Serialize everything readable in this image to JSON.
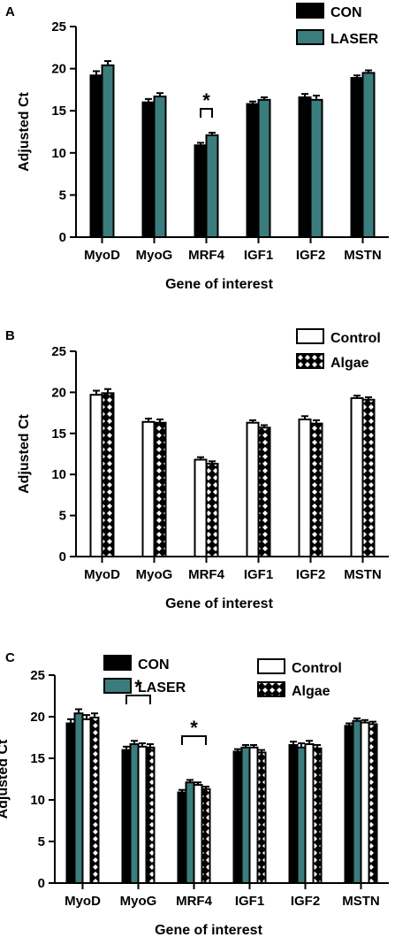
{
  "colors": {
    "con": "#000000",
    "laser": "#3a7d7c",
    "control": "#ffffff",
    "algae": "#000000"
  },
  "chart_data": [
    {
      "panel": "A",
      "type": "bar",
      "xlabel": "Gene of interest",
      "ylabel": "Adjusted Ct",
      "ylim": [
        0,
        25
      ],
      "yticks": [
        0,
        5,
        10,
        15,
        20,
        25
      ],
      "categories": [
        "MyoD",
        "MyoG",
        "MRF4",
        "IGF1",
        "IGF2",
        "MSTN"
      ],
      "series": [
        {
          "name": "CON",
          "fill": "solid-black",
          "values": [
            19.2,
            16.0,
            10.9,
            15.8,
            16.6,
            18.9
          ],
          "errors": [
            0.5,
            0.4,
            0.3,
            0.3,
            0.4,
            0.3
          ]
        },
        {
          "name": "LASER",
          "fill": "solid-teal",
          "values": [
            20.4,
            16.7,
            12.1,
            16.3,
            16.3,
            19.5
          ],
          "errors": [
            0.5,
            0.4,
            0.3,
            0.3,
            0.5,
            0.3
          ]
        }
      ],
      "annotations": [
        {
          "text": "*",
          "category": "MRF4"
        }
      ],
      "legend": "top-right"
    },
    {
      "panel": "B",
      "type": "bar",
      "xlabel": "Gene of interest",
      "ylabel": "Adjusted Ct",
      "ylim": [
        0,
        25
      ],
      "yticks": [
        0,
        5,
        10,
        15,
        20,
        25
      ],
      "categories": [
        "MyoD",
        "MyoG",
        "MRF4",
        "IGF1",
        "IGF2",
        "MSTN"
      ],
      "series": [
        {
          "name": "Control",
          "fill": "white",
          "values": [
            19.7,
            16.4,
            11.8,
            16.3,
            16.7,
            19.3
          ],
          "errors": [
            0.5,
            0.4,
            0.3,
            0.3,
            0.4,
            0.3
          ]
        },
        {
          "name": "Algae",
          "fill": "black-diamond-pattern",
          "values": [
            19.9,
            16.3,
            11.3,
            15.7,
            16.2,
            19.1
          ],
          "errors": [
            0.5,
            0.4,
            0.3,
            0.3,
            0.4,
            0.3
          ]
        }
      ],
      "legend": "top-right"
    },
    {
      "panel": "C",
      "type": "bar",
      "xlabel": "Gene of interest",
      "ylabel": "Adjusted Ct",
      "ylim": [
        0,
        25
      ],
      "yticks": [
        0,
        5,
        10,
        15,
        20,
        25
      ],
      "categories": [
        "MyoD",
        "MyoG",
        "MRF4",
        "IGF1",
        "IGF2",
        "MSTN"
      ],
      "series": [
        {
          "name": "CON",
          "fill": "solid-black",
          "values": [
            19.2,
            16.0,
            10.9,
            15.8,
            16.6,
            18.9
          ],
          "errors": [
            0.5,
            0.4,
            0.3,
            0.3,
            0.4,
            0.3
          ]
        },
        {
          "name": "LASER",
          "fill": "solid-teal",
          "values": [
            20.4,
            16.7,
            12.1,
            16.3,
            16.3,
            19.5
          ],
          "errors": [
            0.5,
            0.4,
            0.3,
            0.3,
            0.5,
            0.3
          ]
        },
        {
          "name": "Control",
          "fill": "white",
          "values": [
            19.7,
            16.4,
            11.8,
            16.3,
            16.7,
            19.3
          ],
          "errors": [
            0.5,
            0.4,
            0.3,
            0.3,
            0.4,
            0.3
          ]
        },
        {
          "name": "Algae",
          "fill": "black-diamond-pattern",
          "values": [
            19.9,
            16.3,
            11.3,
            15.7,
            16.2,
            19.1
          ],
          "errors": [
            0.5,
            0.4,
            0.3,
            0.3,
            0.4,
            0.3
          ]
        }
      ],
      "annotations": [
        {
          "text": "*",
          "category": "MyoG"
        },
        {
          "text": "*",
          "category": "MRF4"
        }
      ],
      "legend": "top (two columns)"
    }
  ]
}
